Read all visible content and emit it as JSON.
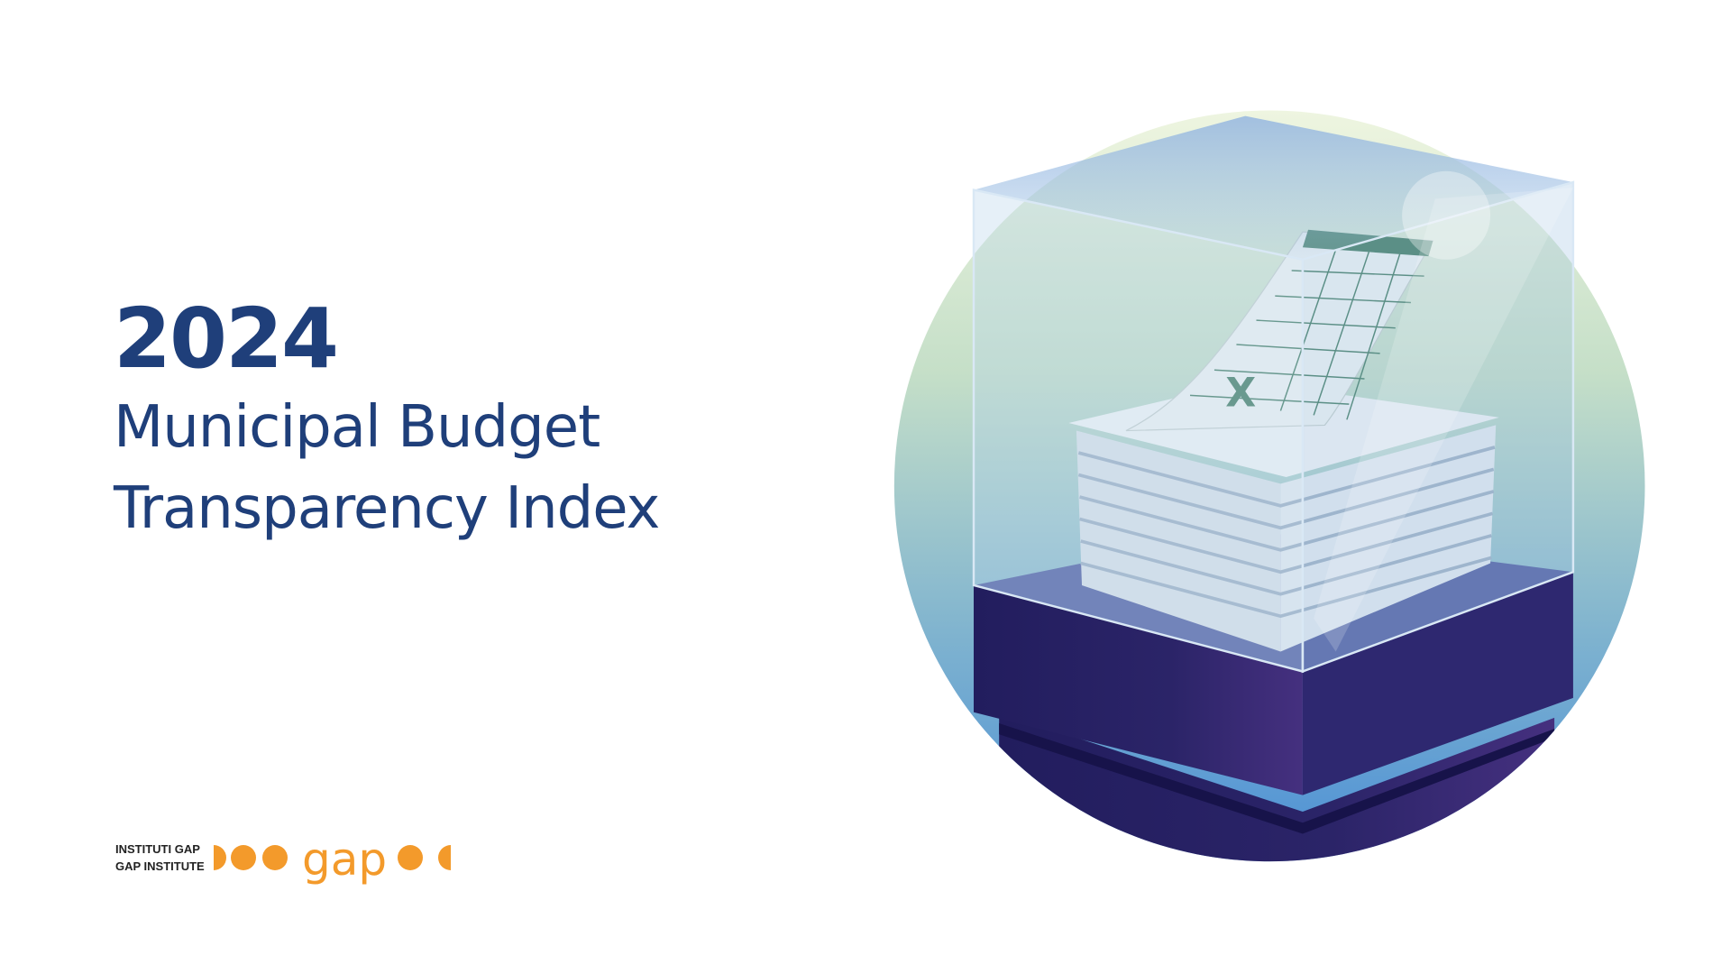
{
  "header": {
    "year": "2024",
    "title_lines": [
      "Municipal Budget",
      "Transparency Index"
    ]
  },
  "logo": {
    "lines": [
      "INSTITUTI GAP",
      "GAP INSTITUTE"
    ],
    "wordmark": "gap"
  },
  "illustration": {
    "sheet_mark": "X"
  }
}
